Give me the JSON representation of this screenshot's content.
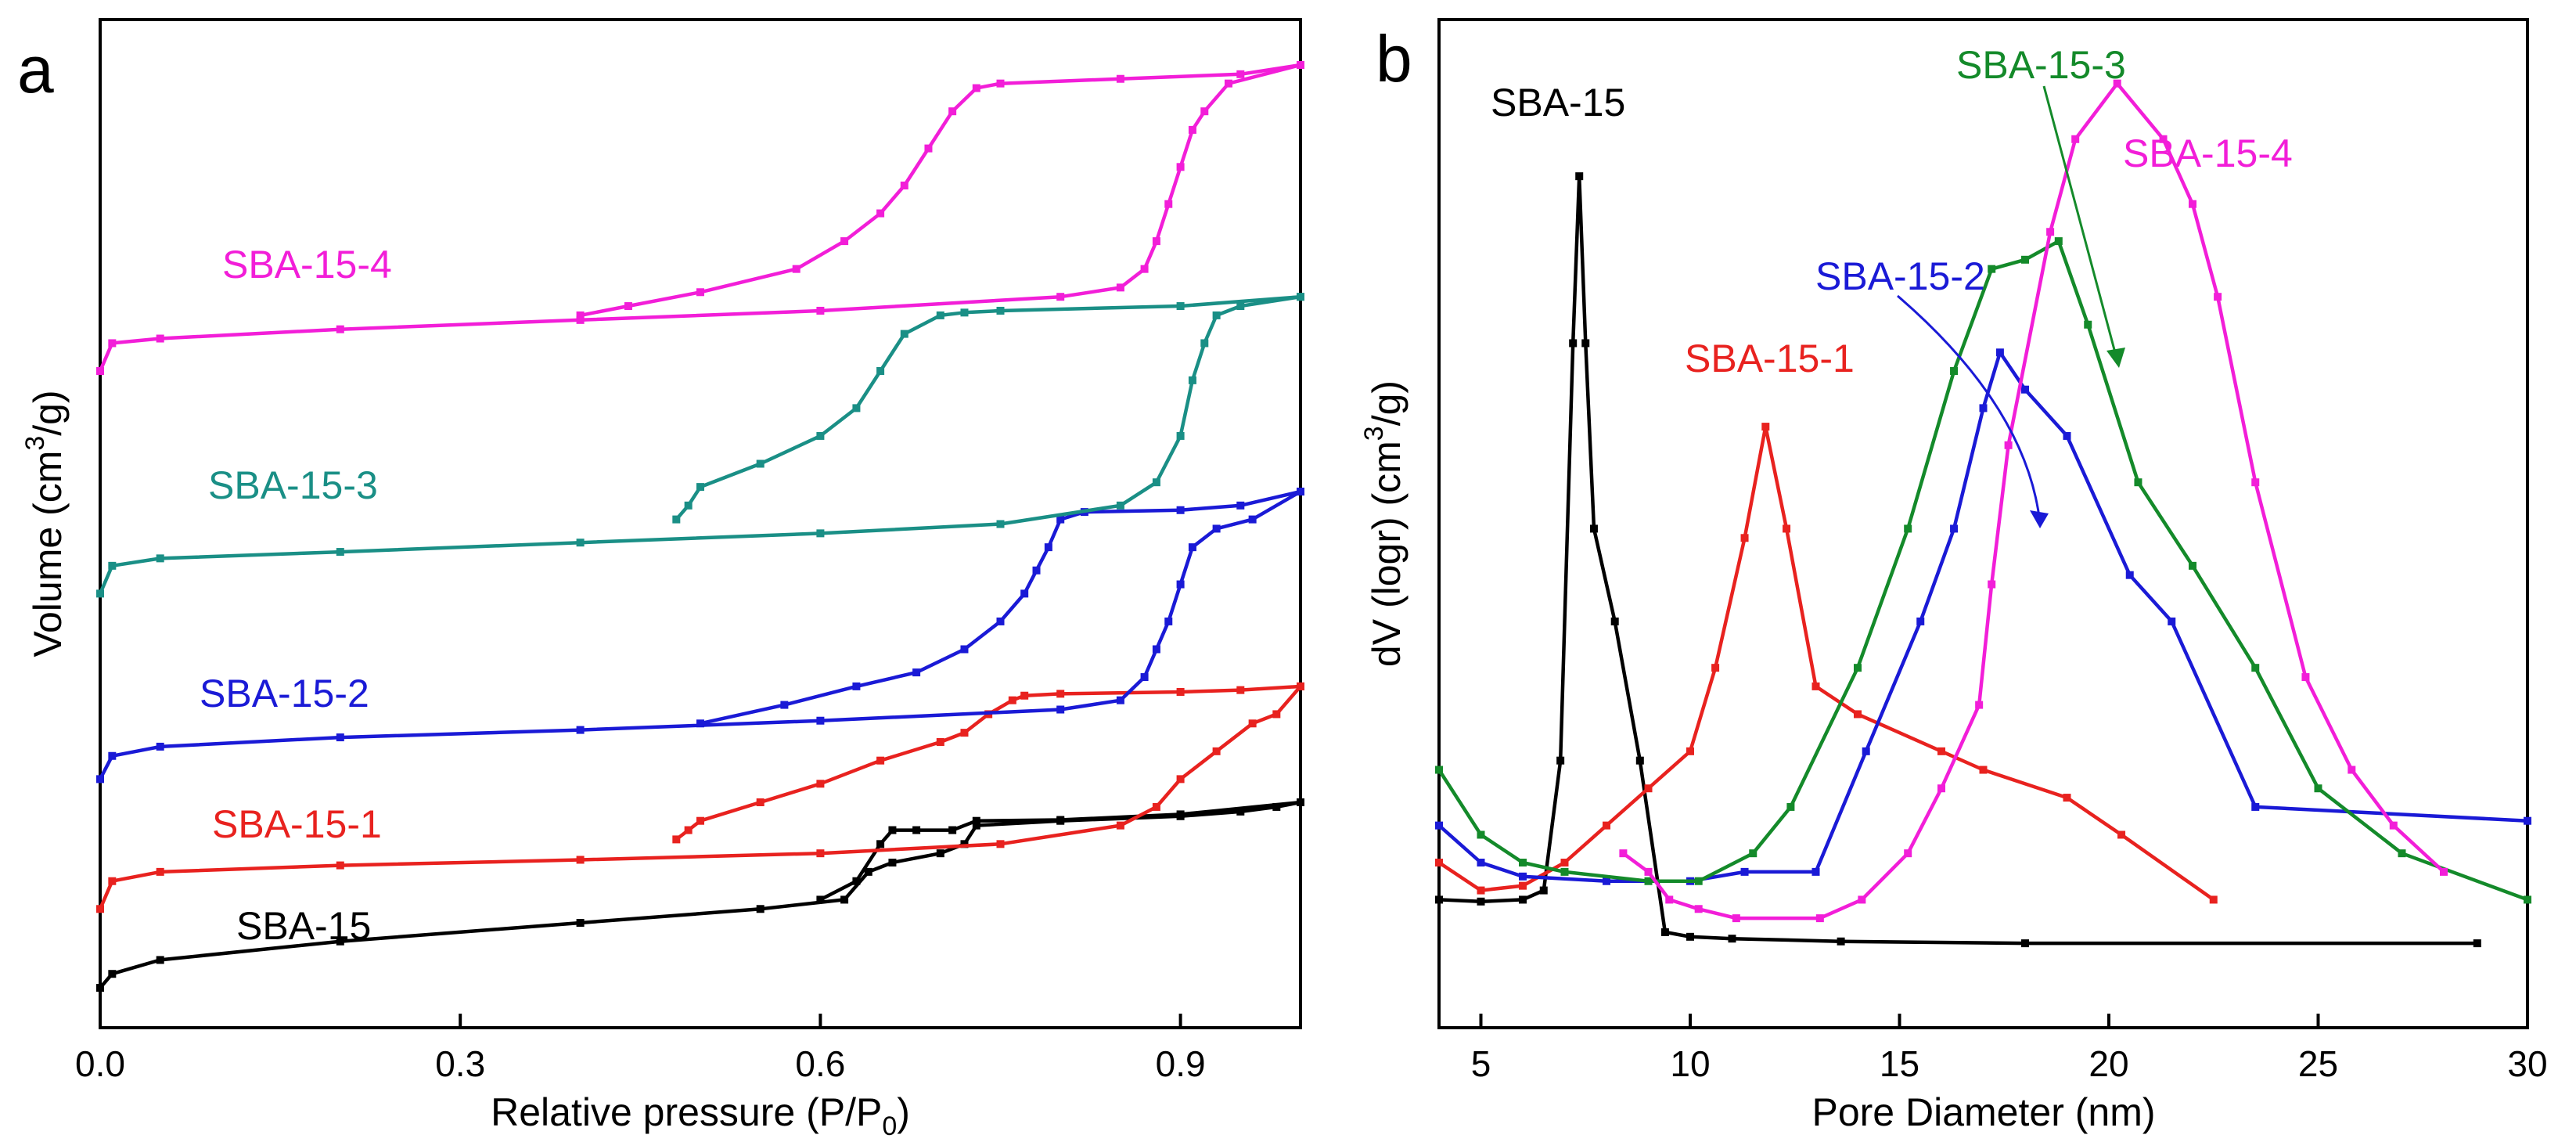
{
  "chart_data": [
    {
      "panel_label": "a",
      "type": "line",
      "xlabel": "Relative pressure (P/P",
      "xlabel_subscript": "0",
      "xlabel_suffix": ")",
      "ylabel": "Volume (cm",
      "ylabel_superscript": "3",
      "ylabel_suffix": "/g)",
      "xlim": [
        0.0,
        1.0
      ],
      "ylim": [
        0,
        100
      ],
      "xticks": [
        "0.0",
        "0.3",
        "0.6",
        "0.9"
      ],
      "xtick_values": [
        0.0,
        0.3,
        0.6,
        0.9
      ],
      "y_tick_labels": false,
      "series": [
        {
          "name": "SBA-15",
          "color": "#000000",
          "adsorption": [
            [
              0,
              0.5
            ],
            [
              0.01,
              2
            ],
            [
              0.05,
              3.5
            ],
            [
              0.2,
              5.5
            ],
            [
              0.4,
              7.5
            ],
            [
              0.55,
              9
            ],
            [
              0.62,
              10
            ],
            [
              0.64,
              13
            ],
            [
              0.66,
              14
            ],
            [
              0.7,
              15
            ],
            [
              0.72,
              16
            ],
            [
              0.73,
              18
            ],
            [
              0.8,
              18.5
            ],
            [
              0.9,
              19
            ],
            [
              0.95,
              19.5
            ],
            [
              0.98,
              20
            ],
            [
              1.0,
              20.5
            ]
          ],
          "desorption": [
            [
              1.0,
              20.5
            ],
            [
              0.9,
              19.2
            ],
            [
              0.8,
              18.6
            ],
            [
              0.73,
              18.5
            ],
            [
              0.71,
              17.5
            ],
            [
              0.68,
              17.5
            ],
            [
              0.66,
              17.5
            ],
            [
              0.65,
              16
            ],
            [
              0.63,
              12
            ],
            [
              0.6,
              10
            ]
          ]
        },
        {
          "name": "SBA-15-1",
          "color": "#e8221f",
          "adsorption": [
            [
              0,
              9
            ],
            [
              0.01,
              12
            ],
            [
              0.05,
              13
            ],
            [
              0.2,
              13.7
            ],
            [
              0.4,
              14.3
            ],
            [
              0.6,
              15
            ],
            [
              0.75,
              16
            ],
            [
              0.85,
              18
            ],
            [
              0.88,
              20
            ],
            [
              0.9,
              23
            ],
            [
              0.93,
              26
            ],
            [
              0.96,
              29
            ],
            [
              0.98,
              30
            ],
            [
              1.0,
              33
            ]
          ],
          "desorption": [
            [
              1.0,
              33
            ],
            [
              0.95,
              32.6
            ],
            [
              0.9,
              32.4
            ],
            [
              0.8,
              32.2
            ],
            [
              0.77,
              32
            ],
            [
              0.76,
              31.5
            ],
            [
              0.74,
              30
            ],
            [
              0.72,
              28
            ],
            [
              0.7,
              27
            ],
            [
              0.65,
              25
            ],
            [
              0.6,
              22.5
            ],
            [
              0.55,
              20.5
            ],
            [
              0.5,
              18.5
            ],
            [
              0.49,
              17.5
            ],
            [
              0.48,
              16.5
            ]
          ]
        },
        {
          "name": "SBA-15-2",
          "color": "#1a1ad6",
          "adsorption": [
            [
              0,
              23
            ],
            [
              0.01,
              25.5
            ],
            [
              0.05,
              26.5
            ],
            [
              0.2,
              27.5
            ],
            [
              0.4,
              28.3
            ],
            [
              0.6,
              29.3
            ],
            [
              0.8,
              30.5
            ],
            [
              0.85,
              31.5
            ],
            [
              0.87,
              34
            ],
            [
              0.88,
              37
            ],
            [
              0.89,
              40
            ],
            [
              0.9,
              44
            ],
            [
              0.91,
              48
            ],
            [
              0.93,
              50
            ],
            [
              0.96,
              51
            ],
            [
              1.0,
              54
            ]
          ],
          "desorption": [
            [
              1.0,
              54
            ],
            [
              0.95,
              52.5
            ],
            [
              0.9,
              52
            ],
            [
              0.82,
              51.8
            ],
            [
              0.8,
              51
            ],
            [
              0.79,
              48
            ],
            [
              0.78,
              45.5
            ],
            [
              0.77,
              43
            ],
            [
              0.75,
              40
            ],
            [
              0.72,
              37
            ],
            [
              0.68,
              34.5
            ],
            [
              0.63,
              33
            ],
            [
              0.57,
              31
            ],
            [
              0.5,
              29
            ]
          ]
        },
        {
          "name": "SBA-15-3",
          "color": "#1a8f86",
          "adsorption": [
            [
              0,
              43
            ],
            [
              0.01,
              46
            ],
            [
              0.05,
              46.8
            ],
            [
              0.2,
              47.5
            ],
            [
              0.4,
              48.5
            ],
            [
              0.6,
              49.5
            ],
            [
              0.75,
              50.5
            ],
            [
              0.85,
              52.5
            ],
            [
              0.88,
              55
            ],
            [
              0.9,
              60
            ],
            [
              0.91,
              66
            ],
            [
              0.92,
              70
            ],
            [
              0.93,
              73
            ],
            [
              0.95,
              74
            ],
            [
              1.0,
              75
            ]
          ],
          "desorption": [
            [
              1.0,
              75
            ],
            [
              0.9,
              74
            ],
            [
              0.75,
              73.5
            ],
            [
              0.72,
              73.3
            ],
            [
              0.7,
              73
            ],
            [
              0.67,
              71
            ],
            [
              0.65,
              67
            ],
            [
              0.63,
              63
            ],
            [
              0.6,
              60
            ],
            [
              0.55,
              57
            ],
            [
              0.5,
              54.5
            ],
            [
              0.49,
              52.5
            ],
            [
              0.48,
              51
            ]
          ]
        },
        {
          "name": "SBA-15-4",
          "color": "#f21ed8",
          "adsorption": [
            [
              0,
              67
            ],
            [
              0.01,
              70
            ],
            [
              0.05,
              70.5
            ],
            [
              0.2,
              71.5
            ],
            [
              0.4,
              72.5
            ],
            [
              0.6,
              73.5
            ],
            [
              0.8,
              75
            ],
            [
              0.85,
              76
            ],
            [
              0.87,
              78
            ],
            [
              0.88,
              81
            ],
            [
              0.89,
              85
            ],
            [
              0.9,
              89
            ],
            [
              0.91,
              93
            ],
            [
              0.92,
              95
            ],
            [
              0.94,
              98
            ],
            [
              1.0,
              100
            ]
          ],
          "desorption": [
            [
              1.0,
              100
            ],
            [
              0.95,
              99
            ],
            [
              0.85,
              98.5
            ],
            [
              0.75,
              98
            ],
            [
              0.73,
              97.5
            ],
            [
              0.71,
              95
            ],
            [
              0.69,
              91
            ],
            [
              0.67,
              87
            ],
            [
              0.65,
              84
            ],
            [
              0.62,
              81
            ],
            [
              0.58,
              78
            ],
            [
              0.5,
              75.5
            ],
            [
              0.44,
              74
            ],
            [
              0.4,
              73
            ]
          ]
        }
      ],
      "labels": [
        "SBA-15-4",
        "SBA-15-3",
        "SBA-15-2",
        "SBA-15-1",
        "SBA-15"
      ]
    },
    {
      "panel_label": "b",
      "type": "line",
      "xlabel": "Pore Diameter (nm)",
      "ylabel": "dV (logr) (cm",
      "ylabel_superscript": "3",
      "ylabel_suffix": "/g)",
      "xlim": [
        4,
        30
      ],
      "ylim": [
        0,
        100
      ],
      "xticks": [
        "5",
        "10",
        "15",
        "20",
        "25",
        "30"
      ],
      "xtick_values": [
        5,
        10,
        15,
        20,
        25,
        30
      ],
      "y_tick_labels": false,
      "series": [
        {
          "name": "SBA-15",
          "color": "#000000",
          "points": [
            [
              4,
              10
            ],
            [
              5,
              9.8
            ],
            [
              6,
              10
            ],
            [
              6.5,
              11
            ],
            [
              6.9,
              25
            ],
            [
              7.2,
              70
            ],
            [
              7.35,
              88
            ],
            [
              7.5,
              70
            ],
            [
              7.7,
              50
            ],
            [
              8.2,
              40
            ],
            [
              8.8,
              25
            ],
            [
              9.4,
              6.5
            ],
            [
              10,
              6
            ],
            [
              11,
              5.8
            ],
            [
              13.6,
              5.5
            ],
            [
              18,
              5.3
            ],
            [
              28.8,
              5.3
            ]
          ]
        },
        {
          "name": "SBA-15-1",
          "color": "#e8221f",
          "points": [
            [
              4,
              14
            ],
            [
              5,
              11
            ],
            [
              6,
              11.5
            ],
            [
              7,
              14
            ],
            [
              8,
              18
            ],
            [
              9,
              22
            ],
            [
              10,
              26
            ],
            [
              10.6,
              35
            ],
            [
              11.3,
              49
            ],
            [
              11.8,
              61
            ],
            [
              12.3,
              50
            ],
            [
              13,
              33
            ],
            [
              14,
              30
            ],
            [
              16,
              26
            ],
            [
              17,
              24
            ],
            [
              19,
              21
            ],
            [
              20.3,
              17
            ],
            [
              22.5,
              10
            ]
          ]
        },
        {
          "name": "SBA-15-2",
          "color": "#1a1ad6",
          "points": [
            [
              4,
              18
            ],
            [
              5,
              14
            ],
            [
              6,
              12.5
            ],
            [
              8,
              12
            ],
            [
              10,
              12
            ],
            [
              11.3,
              13
            ],
            [
              13,
              13
            ],
            [
              14.2,
              26
            ],
            [
              15.5,
              40
            ],
            [
              16.3,
              50
            ],
            [
              17,
              63
            ],
            [
              17.4,
              69
            ],
            [
              18,
              65
            ],
            [
              19,
              60
            ],
            [
              20.5,
              45
            ],
            [
              21.5,
              40
            ],
            [
              23.5,
              20
            ],
            [
              30,
              18.5
            ]
          ]
        },
        {
          "name": "SBA-15-3",
          "color": "#1a8f86",
          "stroke": "#148a2a",
          "points": [
            [
              4,
              24
            ],
            [
              5,
              17
            ],
            [
              6,
              14
            ],
            [
              7,
              13
            ],
            [
              9,
              12
            ],
            [
              10.2,
              12
            ],
            [
              11.5,
              15
            ],
            [
              12.4,
              20
            ],
            [
              14,
              35
            ],
            [
              15.2,
              50
            ],
            [
              16.3,
              67
            ],
            [
              17.2,
              78
            ],
            [
              18,
              79
            ],
            [
              18.8,
              81
            ],
            [
              19.5,
              72
            ],
            [
              20.7,
              55
            ],
            [
              22,
              46
            ],
            [
              23.5,
              35
            ],
            [
              25,
              22
            ],
            [
              27,
              15
            ],
            [
              30,
              10
            ]
          ]
        },
        {
          "name": "SBA-15-4",
          "color": "#f21ed8",
          "points": [
            [
              8.4,
              15
            ],
            [
              9,
              13
            ],
            [
              9.5,
              10
            ],
            [
              10.2,
              9
            ],
            [
              11.1,
              8
            ],
            [
              13.1,
              8
            ],
            [
              14.1,
              10
            ],
            [
              15.2,
              15
            ],
            [
              16,
              22
            ],
            [
              16.9,
              31
            ],
            [
              17.2,
              44
            ],
            [
              17.6,
              59
            ],
            [
              18.6,
              82
            ],
            [
              19.2,
              92
            ],
            [
              20.2,
              98
            ],
            [
              21.3,
              92
            ],
            [
              22,
              85
            ],
            [
              22.6,
              75
            ],
            [
              23.5,
              55
            ],
            [
              24.7,
              34
            ],
            [
              25.8,
              24
            ],
            [
              26.8,
              18
            ],
            [
              28,
              13
            ]
          ]
        }
      ],
      "labels": [
        "SBA-15",
        "SBA-15-1",
        "SBA-15-2",
        "SBA-15-3",
        "SBA-15-4"
      ]
    }
  ]
}
